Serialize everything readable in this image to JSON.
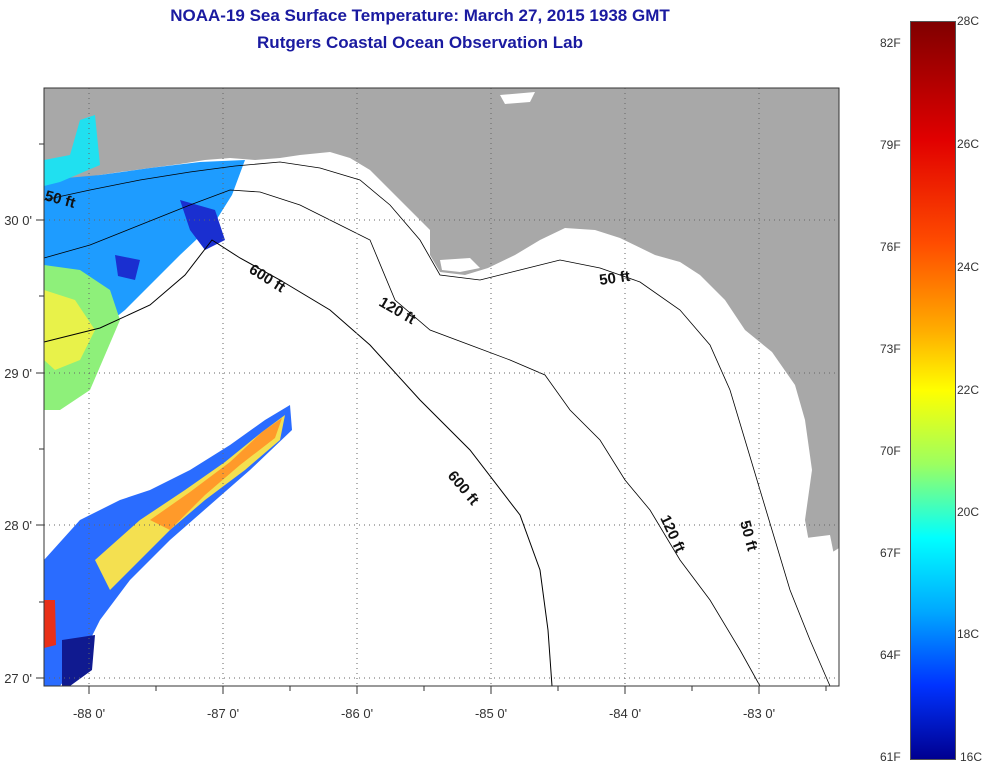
{
  "header": {
    "title": "NOAA-19 Sea Surface Temperature:  March 27, 2015 1938 GMT",
    "subtitle": "Rutgers Coastal Ocean Observation Lab"
  },
  "map": {
    "lon_labels": [
      "-88 0'",
      "-87 0'",
      "-86 0'",
      "-85 0'",
      "-84 0'",
      "-83 0'"
    ],
    "lat_labels": [
      "30 0'",
      "29 0'",
      "28 0'",
      "27 0'"
    ],
    "contour_labels": [
      "50 ft",
      "600 ft",
      "120 ft",
      "50 ft",
      "600 ft",
      "120 ft",
      "50 ft"
    ],
    "land_color": "#a8a8a8",
    "grid": "dotted"
  },
  "colorbar": {
    "celsius": [
      "28C",
      "26C",
      "24C",
      "22C",
      "20C",
      "18C",
      "16C"
    ],
    "fahrenheit": [
      "82F",
      "79F",
      "76F",
      "73F",
      "70F",
      "67F",
      "64F",
      "61F"
    ],
    "min_c": 16,
    "max_c": 28
  }
}
